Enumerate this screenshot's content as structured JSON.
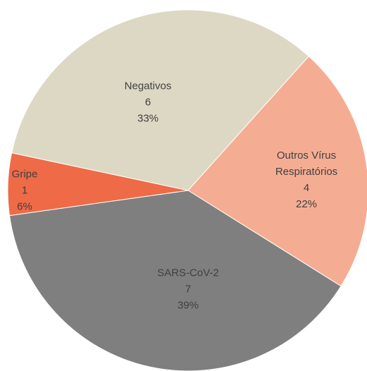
{
  "chart_data": {
    "type": "pie",
    "categories": [
      "Negativos",
      "Outros Vírus Respiratórios",
      "SARS-CoV-2",
      "Gripe"
    ],
    "values": [
      6,
      4,
      7,
      1
    ],
    "percent_labels": [
      "33%",
      "22%",
      "39%",
      "6%"
    ],
    "colors": [
      "#dcd8c4",
      "#f4ad93",
      "#7f7f7f",
      "#ef6a47"
    ]
  }
}
